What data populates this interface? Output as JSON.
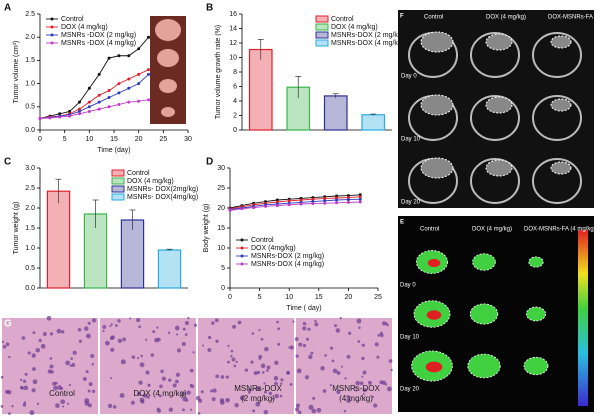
{
  "chart_data": [
    {
      "label": "A",
      "type": "line",
      "xlabel": "Time (day)",
      "ylabel": "Tumor volume (cm³)",
      "x": [
        0,
        2,
        4,
        6,
        8,
        10,
        12,
        14,
        16,
        18,
        20,
        22
      ],
      "series": [
        {
          "name": "Control",
          "color": "#111111",
          "values": [
            0.25,
            0.3,
            0.35,
            0.4,
            0.6,
            0.9,
            1.2,
            1.55,
            1.6,
            1.6,
            1.75,
            2.0
          ]
        },
        {
          "name": "DOX (4 mg/kg)",
          "color": "#e0202a",
          "values": [
            0.25,
            0.28,
            0.3,
            0.35,
            0.45,
            0.6,
            0.75,
            0.85,
            1.0,
            1.1,
            1.2,
            1.3
          ]
        },
        {
          "name": "MSNRs -DOX (2 mg/kg)",
          "color": "#2e3cc0",
          "values": [
            0.25,
            0.27,
            0.3,
            0.33,
            0.4,
            0.5,
            0.6,
            0.7,
            0.8,
            0.9,
            1.0,
            1.2
          ]
        },
        {
          "name": "MSNRs -DOX (4 mg/kg)",
          "color": "#c03cc8",
          "values": [
            0.25,
            0.26,
            0.28,
            0.3,
            0.35,
            0.4,
            0.45,
            0.5,
            0.55,
            0.6,
            0.62,
            0.65
          ]
        }
      ],
      "xlim": [
        0,
        30
      ],
      "xticks": [
        0,
        5,
        10,
        15,
        20,
        25,
        30
      ],
      "ylim": [
        0,
        2.5
      ],
      "yticks": [
        {
          "value": 0,
          "label": "0.0"
        },
        {
          "value": 0.5,
          "label": "0.5"
        },
        {
          "value": 1,
          "label": "1.0"
        },
        {
          "value": 1.5,
          "label": "1.5"
        },
        {
          "value": 2,
          "label": "2.0"
        },
        {
          "value": 2.5,
          "label": "2.5"
        }
      ],
      "legend": "upper left"
    },
    {
      "label": "B",
      "type": "bar",
      "ylabel": "Tumor volume growth rate (%)",
      "categories": [
        "Control",
        "DOX (4 mg/kg)",
        "MSNRs-DOX (2 mg/kg)",
        "MSNRs-DOX (4 mg/kg)"
      ],
      "values": [
        11.1,
        5.9,
        4.7,
        2.1
      ],
      "errors": [
        1.4,
        1.5,
        0.3,
        0.1
      ],
      "colors": [
        "#e0202a",
        "#3ab54a",
        "#2e3192",
        "#29abe2"
      ],
      "ylim": [
        0,
        16
      ],
      "yticks": [
        0,
        2,
        4,
        6,
        8,
        10,
        12,
        14,
        16
      ],
      "legend": "upper right"
    },
    {
      "label": "C",
      "type": "bar",
      "ylabel": "Tumor  weight (g)",
      "categories": [
        "Control",
        "DOX (4 mg/kg)",
        "MSNRs- DOX(2mg/kg)",
        "MSNRs- DOX(4mg/kg)"
      ],
      "values": [
        2.42,
        1.85,
        1.7,
        0.95
      ],
      "errors": [
        0.3,
        0.35,
        0.25,
        0.02
      ],
      "colors": [
        "#e0202a",
        "#3ab54a",
        "#2e3192",
        "#29abe2"
      ],
      "ylim": [
        0,
        3
      ],
      "yticks": [
        {
          "value": 0,
          "label": "0.0"
        },
        {
          "value": 0.5,
          "label": "0.5"
        },
        {
          "value": 1,
          "label": "1.0"
        },
        {
          "value": 1.5,
          "label": "1.5"
        },
        {
          "value": 2,
          "label": "2.0"
        },
        {
          "value": 2.5,
          "label": "2.5"
        },
        {
          "value": 3,
          "label": "3.0"
        }
      ],
      "legend": "upper right"
    },
    {
      "label": "D",
      "type": "line",
      "xlabel": "Time  ( day)",
      "ylabel": "Body  weight (g)",
      "x": [
        0,
        2,
        4,
        6,
        8,
        10,
        12,
        14,
        16,
        18,
        20,
        22
      ],
      "series": [
        {
          "name": "Control",
          "color": "#111111",
          "values": [
            20,
            20.6,
            21.2,
            21.6,
            22,
            22.2,
            22.4,
            22.6,
            22.8,
            23,
            23.1,
            23.3
          ]
        },
        {
          "name": "DOX (4mg/kg)",
          "color": "#e0202a",
          "values": [
            19.8,
            20.3,
            20.8,
            21.2,
            21.5,
            21.8,
            22,
            22.2,
            22.4,
            22.5,
            22.6,
            22.8
          ]
        },
        {
          "name": "MSNRs-DOX (2 mg/kg)",
          "color": "#2e3cc0",
          "values": [
            19.6,
            20,
            20.4,
            20.8,
            21,
            21.2,
            21.4,
            21.6,
            21.8,
            22,
            22.1,
            22.2
          ]
        },
        {
          "name": "MSNRs-DOX (4 mg/kg)",
          "color": "#c03cc8",
          "values": [
            19.4,
            19.8,
            20.1,
            20.4,
            20.6,
            20.8,
            21,
            21.1,
            21.2,
            21.3,
            21.4,
            21.5
          ]
        }
      ],
      "xlim": [
        0,
        25
      ],
      "xticks": [
        0,
        5,
        10,
        15,
        20,
        25
      ],
      "ylim": [
        0,
        30
      ],
      "yticks": [
        0,
        5,
        10,
        15,
        20,
        25,
        30
      ],
      "legend": "lower left"
    }
  ],
  "panel_f": {
    "label": "F",
    "columns": [
      "Control",
      "DOX (4 mg/kg)",
      "DOX-MSNRs-FA (4 mg/kg)"
    ],
    "rows": [
      "Day 0",
      "Day 10",
      "Day 20"
    ]
  },
  "panel_e": {
    "label": "E",
    "columns": [
      "Control",
      "DOX (4 mg/kg)",
      "DOX-MSNRs-FA (4 mg/kg)"
    ],
    "rows": [
      "Day 0",
      "Day 10",
      "Day 20"
    ]
  },
  "panel_g": {
    "label": "G",
    "captions": [
      "Control",
      "DOX (4 mg/kg)",
      "MSNRs-DOX\n(2 mg/kg)",
      "MSNRs-DOX\n(4 mg/kg)"
    ]
  }
}
